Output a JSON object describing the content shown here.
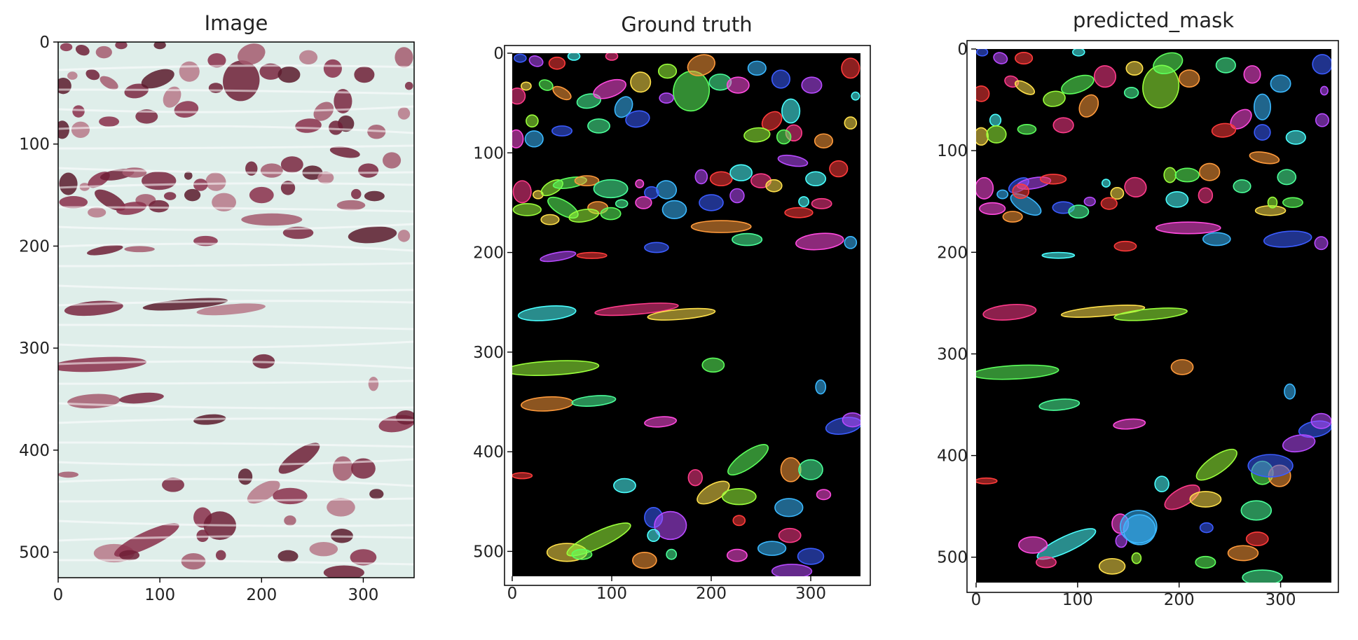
{
  "panels": [
    {
      "title": "Image",
      "kind": "he-image",
      "xticks": [
        0,
        100,
        200,
        300
      ],
      "yticks": [
        0,
        100,
        200,
        300,
        400,
        500
      ],
      "extent": [
        350,
        525
      ]
    },
    {
      "title": "Ground truth",
      "kind": "instance-mask",
      "xticks": [
        0,
        100,
        200,
        300
      ],
      "yticks": [
        0,
        100,
        200,
        300,
        400,
        500
      ],
      "extent": [
        350,
        525
      ]
    },
    {
      "title": "predicted_mask",
      "kind": "instance-mask",
      "xticks": [
        0,
        100,
        200,
        300
      ],
      "yticks": [
        0,
        100,
        200,
        300,
        400,
        500
      ],
      "extent": [
        350,
        525
      ]
    }
  ],
  "colors": {
    "tissue_bg": "#dfeeea",
    "nucleus": "#8a2e4a",
    "mask_bg": "#000000",
    "palette": [
      "#ff3b3b",
      "#5cff5c",
      "#3b5cff",
      "#ffe04a",
      "#ff4adf",
      "#4affff",
      "#ff9a3b",
      "#b84aff",
      "#9aff3b",
      "#3bb8ff",
      "#ff3b8a",
      "#4aff9a"
    ]
  }
}
